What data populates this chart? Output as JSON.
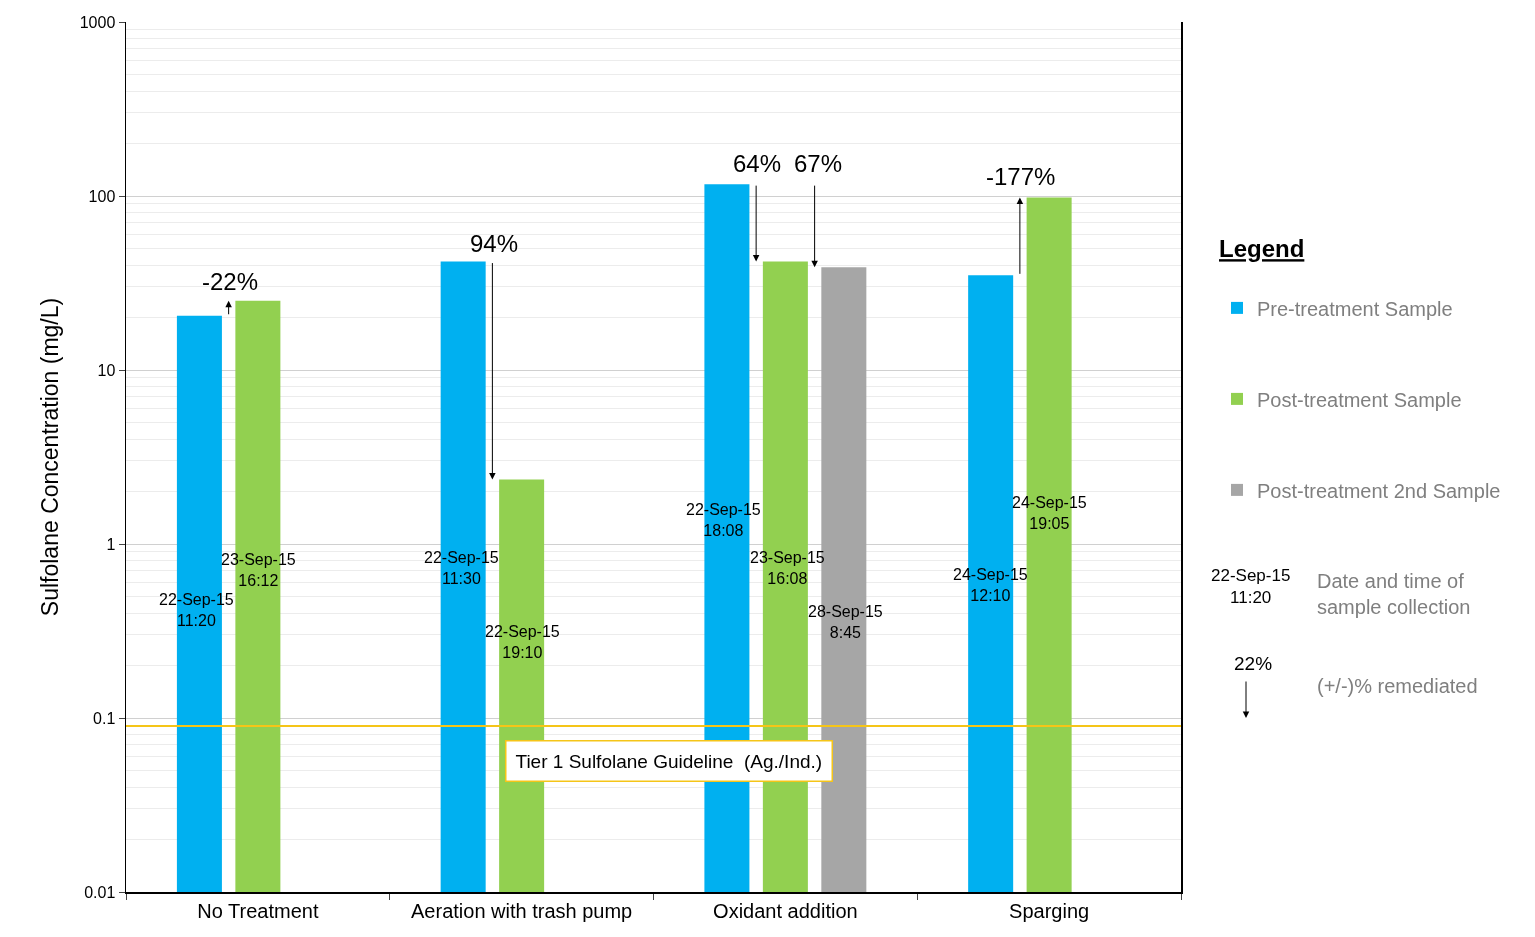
{
  "chart_data": {
    "type": "bar",
    "ylabel": "Sulfolane Concentration (mg/L)",
    "legend_title": "Legend",
    "categories": [
      "No Treatment",
      "Aeration with trash pump",
      "Oxidant addition",
      "Sparging"
    ],
    "series": [
      {
        "name": "Pre-treatment Sample",
        "color": "#00b0f0",
        "values": [
          20.5,
          42,
          117,
          35
        ]
      },
      {
        "name": "Post-treatment Sample",
        "color": "#92d050",
        "values": [
          25,
          2.35,
          42,
          98
        ]
      },
      {
        "name": "Post-treatment 2nd Sample",
        "color": "#a6a6a6",
        "values": [
          null,
          null,
          39,
          null
        ]
      }
    ],
    "log": "y",
    "ylim": [
      0.01,
      1000
    ],
    "yticks": [
      0.01,
      0.1,
      1,
      10,
      100,
      1000
    ],
    "grid": "y",
    "legend": "right",
    "ref_lines": [
      {
        "axis": "y",
        "value": 0.09,
        "label": "Tier 1 Sulfolane Guideline  (Ag./Ind.)",
        "color": "#f5c518"
      }
    ],
    "annotations": [
      "22-Sep-15\n11:20",
      "23-Sep-15\n16:12",
      "-22%",
      "22-Sep-15\n11:30",
      "22-Sep-15\n19:10",
      "94%",
      "22-Sep-15\n18:08",
      "23-Sep-15\n16:08",
      "28-Sep-15\n8:45",
      "64%",
      "67%",
      "24-Sep-15\n12:10",
      "24-Sep-15\n19:05",
      "-177%",
      "22-Sep-15\n11:20",
      "Date and time of\nsample collection",
      "22%",
      "(+/-)% remediated"
    ]
  }
}
